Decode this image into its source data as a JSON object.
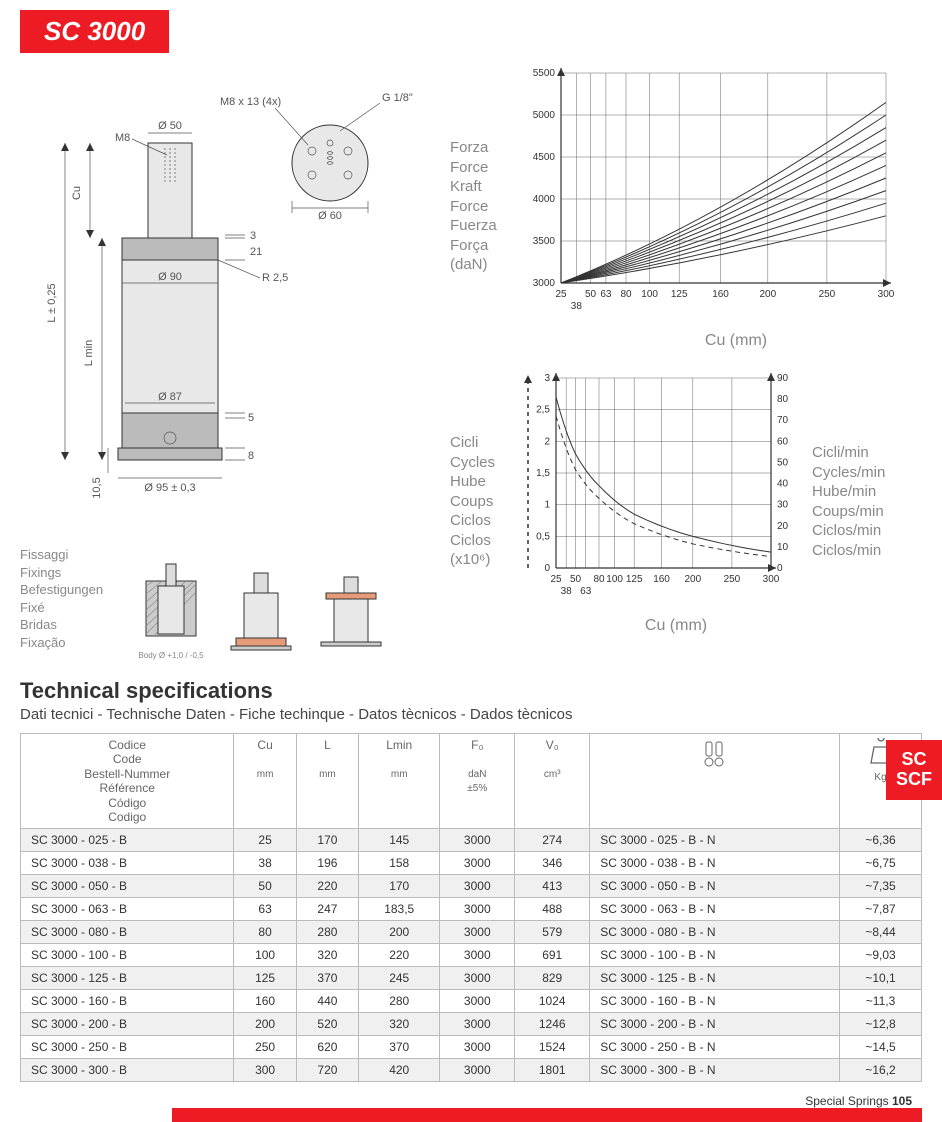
{
  "title": "SC 3000",
  "drawing": {
    "top_callouts": {
      "g_thread": "G 1/8\"",
      "m8_holes": "M8 x 13 (4x)",
      "d50": "Ø 50",
      "m8": "M8",
      "d60": "Ø 60"
    },
    "side_labels": {
      "cu": "Cu",
      "l_tol": "L ± 0,25",
      "lmin": "L min",
      "h10_5": "10,5"
    },
    "body_dims": {
      "d90": "Ø 90",
      "r25": "R 2,5",
      "h3": "3",
      "h21": "21",
      "d87": "Ø 87",
      "h5": "5",
      "h8": "8",
      "d95": "Ø 95 ± 0,3"
    },
    "body_tol": "Body Ø +1,0 / -0,5"
  },
  "fixings_labels": [
    "Fissaggi",
    "Fixings",
    "Befestigungen",
    "Fixé",
    "Bridas",
    "Fixação"
  ],
  "force_chart": {
    "type": "line",
    "y_labels": [
      "Forza",
      "Force",
      "Kraft",
      "Force",
      "Fuerza",
      "Força",
      "(daN)"
    ],
    "x_label": "Cu (mm)",
    "ylim": [
      3000,
      5500
    ],
    "ytick_step": 500,
    "xticks": [
      25,
      38,
      50,
      63,
      80,
      100,
      125,
      160,
      200,
      250,
      300
    ],
    "xtick_labels_top": [
      "25",
      "50",
      "63",
      "80",
      "100",
      "125",
      "160",
      "200",
      "250",
      "300"
    ],
    "xtick_labels_bot": [
      "38"
    ],
    "series_endpoints_daN": [
      3800,
      3950,
      4100,
      4250,
      4400,
      4550,
      4700,
      4850,
      5000,
      5150
    ],
    "grid_color": "#666666",
    "curve_color": "#000000",
    "background_color": "#ffffff"
  },
  "cycles_chart": {
    "type": "line-dual-axis",
    "y_left_labels": [
      "Cicli",
      "Cycles",
      "Hube",
      "Coups",
      "Ciclos",
      "Ciclos",
      "(x10⁶)"
    ],
    "y_right_labels": [
      "Cicli/min",
      "Cycles/min",
      "Hube/min",
      "Coups/min",
      "Ciclos/min",
      "Ciclos/min"
    ],
    "x_label": "Cu (mm)",
    "left_ylim": [
      0,
      3
    ],
    "left_ytick_step": 0.5,
    "right_ylim": [
      0,
      90
    ],
    "right_ytick_step": 10,
    "xticks": [
      25,
      38,
      50,
      63,
      80,
      100,
      125,
      160,
      200,
      250,
      300
    ],
    "solid_curve": [
      [
        25,
        2.7
      ],
      [
        50,
        1.8
      ],
      [
        80,
        1.3
      ],
      [
        125,
        0.85
      ],
      [
        200,
        0.5
      ],
      [
        300,
        0.25
      ]
    ],
    "dashed_curve": [
      [
        25,
        2.4
      ],
      [
        50,
        1.55
      ],
      [
        80,
        1.1
      ],
      [
        125,
        0.7
      ],
      [
        200,
        0.38
      ],
      [
        300,
        0.18
      ]
    ],
    "grid_color": "#666666",
    "background_color": "#ffffff"
  },
  "specs": {
    "heading": "Technical specifications",
    "subheading": "Dati tecnici - Technische Daten - Fiche techinque - Datos tècnicos - Dados tècnicos",
    "columns": [
      {
        "main": "Codice\nCode\nBestell-Nummer\nRéférence\nCódigo\nCodigo",
        "sub": ""
      },
      {
        "main": "Cu",
        "sub": "mm"
      },
      {
        "main": "L",
        "sub": "mm"
      },
      {
        "main": "Lmin",
        "sub": "mm"
      },
      {
        "main": "F₀",
        "sub": "daN\n±5%"
      },
      {
        "main": "V₀",
        "sub": "cm³"
      },
      {
        "main": "",
        "sub": "",
        "icon": "oil-icon"
      },
      {
        "main": "",
        "sub": "Kg",
        "icon": "weight-icon"
      }
    ],
    "rows": [
      [
        "SC 3000 - 025 - B",
        "25",
        "170",
        "145",
        "3000",
        "274",
        "SC 3000 - 025 - B - N",
        "~6,36"
      ],
      [
        "SC 3000 - 038 - B",
        "38",
        "196",
        "158",
        "3000",
        "346",
        "SC 3000 - 038 - B - N",
        "~6,75"
      ],
      [
        "SC 3000 - 050 - B",
        "50",
        "220",
        "170",
        "3000",
        "413",
        "SC 3000 - 050 - B - N",
        "~7,35"
      ],
      [
        "SC 3000 - 063 - B",
        "63",
        "247",
        "183,5",
        "3000",
        "488",
        "SC 3000 - 063 - B - N",
        "~7,87"
      ],
      [
        "SC 3000 - 080 - B",
        "80",
        "280",
        "200",
        "3000",
        "579",
        "SC 3000 - 080 - B - N",
        "~8,44"
      ],
      [
        "SC 3000 - 100 - B",
        "100",
        "320",
        "220",
        "3000",
        "691",
        "SC 3000 - 100 - B - N",
        "~9,03"
      ],
      [
        "SC 3000 - 125 - B",
        "125",
        "370",
        "245",
        "3000",
        "829",
        "SC 3000 - 125 - B - N",
        "~10,1"
      ],
      [
        "SC 3000 - 160 - B",
        "160",
        "440",
        "280",
        "3000",
        "1024",
        "SC 3000 - 160 - B - N",
        "~11,3"
      ],
      [
        "SC 3000 - 200 - B",
        "200",
        "520",
        "320",
        "3000",
        "1246",
        "SC 3000 - 200 - B - N",
        "~12,8"
      ],
      [
        "SC 3000 - 250 - B",
        "250",
        "620",
        "370",
        "3000",
        "1524",
        "SC 3000 - 250 - B - N",
        "~14,5"
      ],
      [
        "SC 3000 - 300 - B",
        "300",
        "720",
        "420",
        "3000",
        "1801",
        "SC 3000 - 300 - B - N",
        "~16,2"
      ]
    ]
  },
  "side_tab": "SC\nSCF",
  "footer": {
    "text": "Special Springs",
    "page": "105"
  },
  "colors": {
    "brand_red": "#ed1c24",
    "grey_text": "#888888",
    "border": "#bbbbbb",
    "row_alt": "#f0f0f0"
  }
}
